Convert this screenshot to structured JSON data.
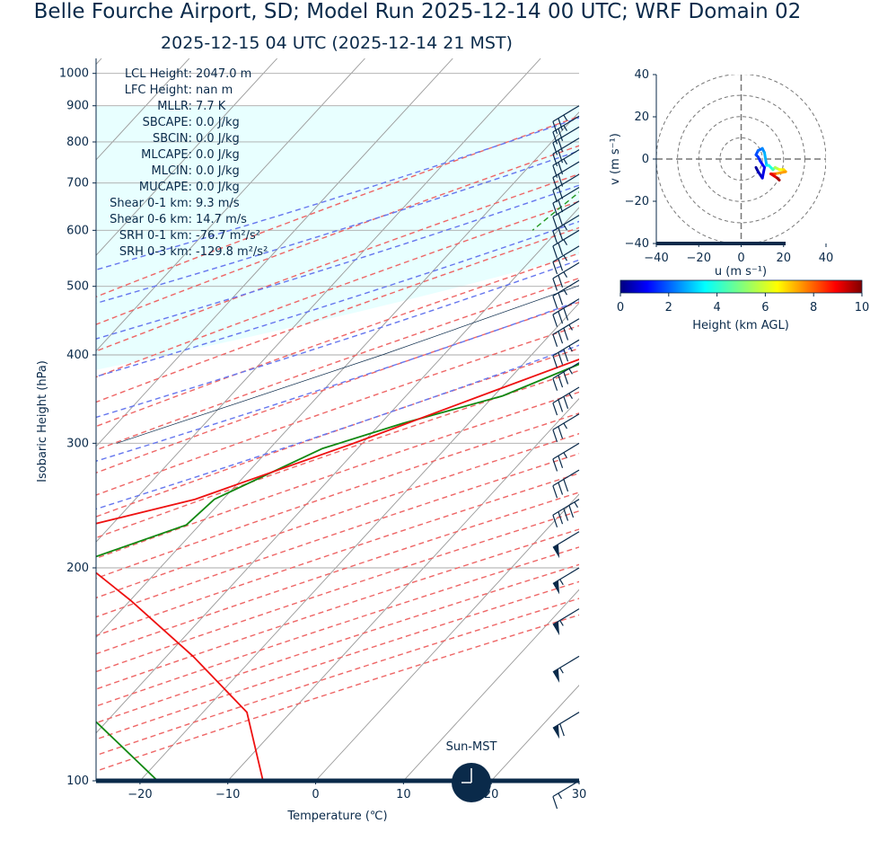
{
  "title": "Belle Fourche Airport, SD; Model Run 2025-12-14 00 UTC; WRF Domain 02",
  "subtitle": "2025-12-15 04 UTC  (2025-12-14 21 MST)",
  "skewt": {
    "xlabel": "Temperature (℃)",
    "ylabel": "Isobaric Height (hPa)",
    "x_ticks": [
      "−20",
      "−10",
      "0",
      "10",
      "20",
      "30"
    ],
    "y_ticks": [
      "100",
      "200",
      "300",
      "400",
      "500",
      "600",
      "700",
      "800",
      "900",
      "1000"
    ],
    "clock_label": "Sun-MST"
  },
  "indices": [
    {
      "label": "LCL Height:",
      "value": "2047.0 m"
    },
    {
      "label": "LFC Height:",
      "value": "nan m"
    },
    {
      "label": "MLLR:",
      "value": "7.7 K"
    },
    {
      "label": "SBCAPE:",
      "value": "0.0 J/kg"
    },
    {
      "label": "SBCIN:",
      "value": "0.0 J/kg"
    },
    {
      "label": "MLCAPE:",
      "value": "0.0 J/kg"
    },
    {
      "label": "MLCIN:",
      "value": "0.0 J/kg"
    },
    {
      "label": "MUCAPE:",
      "value": "0.0 J/kg"
    },
    {
      "label": "Shear 0-1 km:",
      "value": "9.3 m/s"
    },
    {
      "label": "Shear 0-6 km:",
      "value": "14.7 m/s"
    },
    {
      "label": "SRH 0-1 km:",
      "value": "-76.7 m²/s²"
    },
    {
      "label": "SRH 0-3 km:",
      "value": "-129.8 m²/s²"
    }
  ],
  "hodograph": {
    "xlabel": "u (m s⁻¹)",
    "ylabel": "v (m s⁻¹)",
    "x_ticks": [
      "−40",
      "−20",
      "0",
      "20",
      "40"
    ],
    "y_ticks": [
      "40",
      "20",
      "0",
      "−20",
      "−40"
    ]
  },
  "colorbar": {
    "label": "Height (km AGL)",
    "ticks": [
      "0",
      "2",
      "4",
      "6",
      "8",
      "10"
    ]
  },
  "colors": {
    "temperature": "#ee1111",
    "dewpoint": "#118811",
    "dry_adiabat": "#ee6666",
    "moist_adiabat": "#6677ee",
    "mixing_ratio": "#229922",
    "isotherm": "#999999",
    "parcel_shade": "#e8ffff",
    "lcl_marker": "#ffa500",
    "barbs": "#0a2a4a"
  },
  "chart_data": [
    {
      "type": "line",
      "chart": "skew-t log-p",
      "x_range": [
        -25,
        30
      ],
      "y_range": [
        1050,
        100
      ],
      "y_scale": "log",
      "series": [
        {
          "variable": "temperature",
          "points": [
            [
              7.0,
              1000
            ],
            [
              20.6,
              887
            ],
            [
              21.0,
              870
            ],
            [
              20.5,
              850
            ],
            [
              21.8,
              823
            ],
            [
              20.5,
              800
            ],
            [
              20.0,
              750
            ],
            [
              18.0,
              700
            ],
            [
              13.5,
              650
            ],
            [
              9.6,
              600
            ],
            [
              4.5,
              550
            ],
            [
              -2.0,
              500
            ],
            [
              -8.0,
              450
            ],
            [
              -13.2,
              400
            ],
            [
              -21.5,
              350
            ],
            [
              -31.0,
              300
            ],
            [
              -43.2,
              250
            ],
            [
              -52.4,
              230
            ],
            [
              -48.0,
              200
            ],
            [
              -40.0,
              180
            ],
            [
              -27.0,
              150
            ],
            [
              -15.0,
              125
            ],
            [
              -6.0,
              100
            ]
          ]
        },
        {
          "variable": "dewpoint",
          "points": [
            [
              2.0,
              900
            ],
            [
              -3.0,
              880
            ],
            [
              -10.0,
              820
            ],
            [
              -10.0,
              780
            ],
            [
              -14.0,
              740
            ],
            [
              -17.0,
              650
            ],
            [
              -18.5,
              600
            ],
            [
              -19.0,
              550
            ],
            [
              -18.0,
              500
            ],
            [
              -17.0,
              450
            ],
            [
              -12.0,
              400
            ],
            [
              -19.0,
              350
            ],
            [
              -27.5,
              320
            ],
            [
              -34.0,
              295
            ],
            [
              -41.0,
              250
            ],
            [
              -41.5,
              230
            ],
            [
              -60.0,
              175
            ],
            [
              -50.0,
              155
            ],
            [
              -36.0,
              130
            ],
            [
              -18.0,
              100
            ]
          ]
        },
        {
          "variable": "parcel",
          "points": [
            [
              10.0,
              900
            ],
            [
              4.7,
              800
            ],
            [
              -6.5,
              650
            ],
            [
              -22.0,
              500
            ],
            [
              -37.0,
              400
            ],
            [
              -58.0,
              300
            ]
          ]
        }
      ],
      "lcl": {
        "pressure_hpa": 800
      },
      "wind_barbs_kt": [
        {
          "pressure_hpa": 100,
          "speed": 15
        },
        {
          "pressure_hpa": 125,
          "speed": 60
        },
        {
          "pressure_hpa": 150,
          "speed": 55
        },
        {
          "pressure_hpa": 175,
          "speed": 55
        },
        {
          "pressure_hpa": 200,
          "speed": 55
        },
        {
          "pressure_hpa": 225,
          "speed": 50
        },
        {
          "pressure_hpa": 250,
          "speed": 45
        },
        {
          "pressure_hpa": 275,
          "speed": 30
        },
        {
          "pressure_hpa": 300,
          "speed": 25
        },
        {
          "pressure_hpa": 330,
          "speed": 25
        },
        {
          "pressure_hpa": 360,
          "speed": 35
        },
        {
          "pressure_hpa": 390,
          "speed": 35
        },
        {
          "pressure_hpa": 420,
          "speed": 35
        },
        {
          "pressure_hpa": 450,
          "speed": 35
        },
        {
          "pressure_hpa": 480,
          "speed": 30
        },
        {
          "pressure_hpa": 510,
          "speed": 25
        },
        {
          "pressure_hpa": 540,
          "speed": 25
        },
        {
          "pressure_hpa": 570,
          "speed": 25
        },
        {
          "pressure_hpa": 600,
          "speed": 25
        },
        {
          "pressure_hpa": 630,
          "speed": 25
        },
        {
          "pressure_hpa": 660,
          "speed": 20
        },
        {
          "pressure_hpa": 690,
          "speed": 20
        },
        {
          "pressure_hpa": 720,
          "speed": 20
        },
        {
          "pressure_hpa": 750,
          "speed": 20
        },
        {
          "pressure_hpa": 780,
          "speed": 25
        },
        {
          "pressure_hpa": 810,
          "speed": 20
        },
        {
          "pressure_hpa": 840,
          "speed": 20
        },
        {
          "pressure_hpa": 870,
          "speed": 25
        },
        {
          "pressure_hpa": 900,
          "speed": 25
        }
      ]
    },
    {
      "type": "line",
      "chart": "hodograph",
      "x_range": [
        -40,
        40
      ],
      "y_range": [
        -40,
        40
      ],
      "rings": [
        10,
        20,
        30,
        40
      ],
      "points": [
        {
          "u": 7,
          "v": -4,
          "z": 0
        },
        {
          "u": 8,
          "v": -6,
          "z": 0.3
        },
        {
          "u": 10,
          "v": -9,
          "z": 0.6
        },
        {
          "u": 11,
          "v": -4,
          "z": 1.0
        },
        {
          "u": 9,
          "v": -1,
          "z": 1.3
        },
        {
          "u": 8,
          "v": 1,
          "z": 1.6
        },
        {
          "u": 7,
          "v": 2,
          "z": 1.8
        },
        {
          "u": 8,
          "v": 4,
          "z": 2.0
        },
        {
          "u": 10,
          "v": 5,
          "z": 2.3
        },
        {
          "u": 11,
          "v": 3,
          "z": 2.6
        },
        {
          "u": 12,
          "v": -3,
          "z": 3.0
        },
        {
          "u": 13,
          "v": -3,
          "z": 3.5
        },
        {
          "u": 15,
          "v": -5,
          "z": 4.0
        },
        {
          "u": 16,
          "v": -4,
          "z": 4.5
        },
        {
          "u": 18,
          "v": -5,
          "z": 5.5
        },
        {
          "u": 20,
          "v": -5,
          "z": 6.2
        },
        {
          "u": 21,
          "v": -6,
          "z": 6.6
        },
        {
          "u": 16,
          "v": -7,
          "z": 7.2
        },
        {
          "u": 14,
          "v": -7,
          "z": 8.0
        },
        {
          "u": 17,
          "v": -9,
          "z": 9.0
        },
        {
          "u": 18,
          "v": -10,
          "z": 9.6
        }
      ]
    }
  ]
}
